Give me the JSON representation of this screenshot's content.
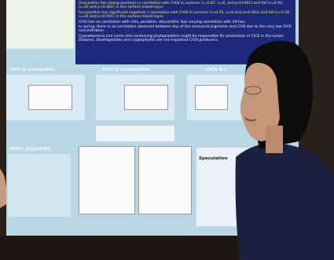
{
  "poster": {
    "conclusions": [
      "Zeaxanthin has strong positive(+) correlation with CH3I in summer (r=0.87, n=6, and p<0.001) and fall (r=0.93, n=20 and p<0.001) in the surface mixed layer.",
      "Fucoxanthin has significant negative(-) correlation with CH3I in summer (r=0.55, n=8 and p<0.001) and fall (r=0.56, n=20 and p<0.001) in the surface mixed layer.",
      "CH3I has no correlation with chla, peridinin, alloxanthin, but varying correlation with 19-hex.",
      "In spring, there is no correlation observed between any of the measured pigments and CH3I due to the very low CH3I concentration.",
      "Cyanobacteria and some chls-containing phytoplankton might be responsible for production of CH3I in the ocean. Diatoms, dinoflagellates and cryptophytes are not important CH3I producers."
    ],
    "panels": [
      "CH3I & zeaxanthin",
      "CH3I & fucoxanthin",
      "CH3I & c"
    ],
    "lower_heading": "other pigments",
    "speculation": "Speculation"
  }
}
